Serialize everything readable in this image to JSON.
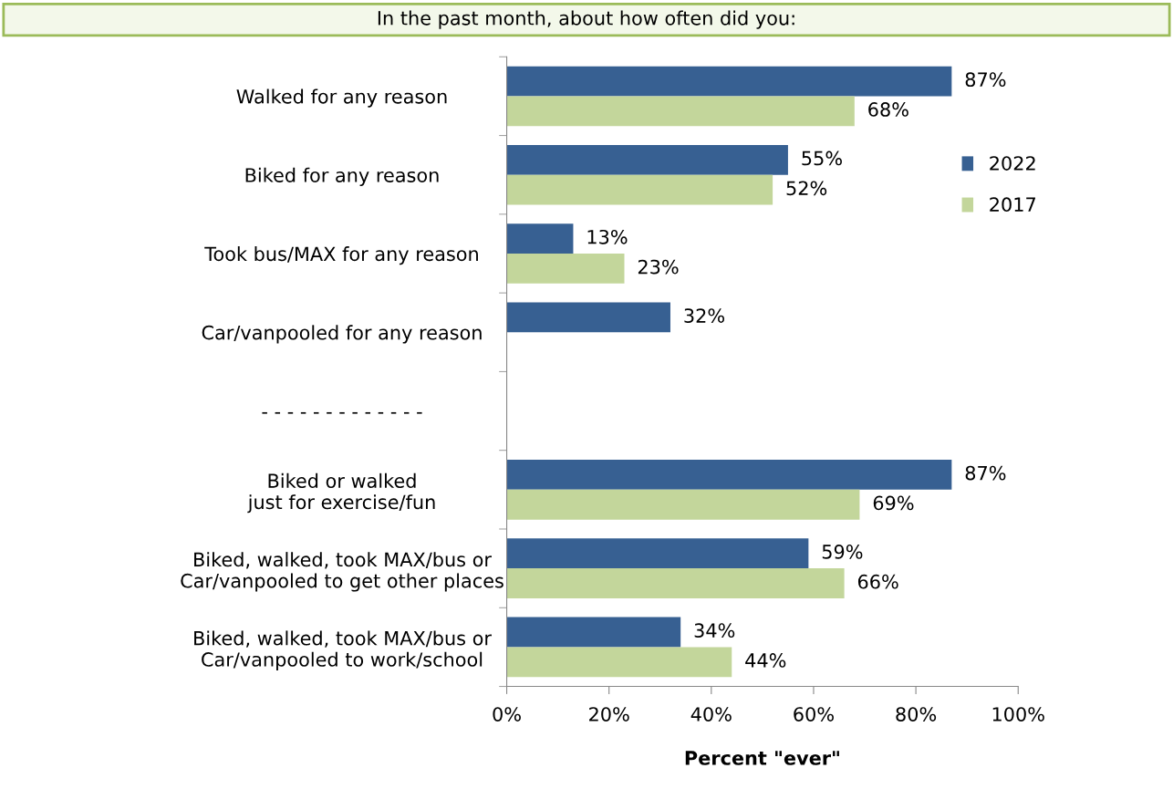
{
  "chart_data": {
    "type": "bar",
    "orientation": "horizontal",
    "title": "In the past month, about how often did you:",
    "xlabel": "Percent \"ever\"",
    "categories": [
      "Walked for any reason",
      "Biked for any reason",
      "Took bus/MAX for any reason",
      "Car/vanpooled for any reason",
      "- - - - - - - - - - - - -",
      "Biked or walked\njust for exercise/fun",
      "Biked, walked, took MAX/bus or\nCar/vanpooled to get other places",
      "Biked, walked, took MAX/bus or\nCar/vanpooled to work/school"
    ],
    "series": [
      {
        "name": "2022",
        "color": "#376092",
        "values": [
          87,
          55,
          13,
          32,
          null,
          87,
          59,
          34
        ],
        "value_labels": [
          "87%",
          "55%",
          "13%",
          "32%",
          null,
          "87%",
          "59%",
          "34%"
        ]
      },
      {
        "name": "2017",
        "color": "#c3d69b",
        "values": [
          68,
          52,
          23,
          null,
          null,
          69,
          66,
          44
        ],
        "value_labels": [
          "68%",
          "52%",
          "23%",
          null,
          null,
          "69%",
          "66%",
          "44%"
        ]
      }
    ],
    "xlim": [
      0,
      100
    ],
    "xticks": [
      {
        "value": 0,
        "label": "0%"
      },
      {
        "value": 20,
        "label": "20%"
      },
      {
        "value": 40,
        "label": "40%"
      },
      {
        "value": 60,
        "label": "60%"
      },
      {
        "value": 80,
        "label": "80%"
      },
      {
        "value": 100,
        "label": "100%"
      }
    ],
    "grid": false,
    "legend": "right"
  }
}
